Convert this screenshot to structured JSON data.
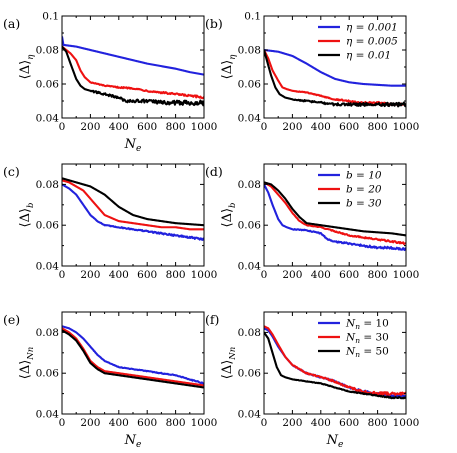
{
  "colors": {
    "blue": "#2222dd",
    "red": "#ee1111",
    "black": "#000000"
  },
  "chart_data": [
    {
      "type": "line",
      "panel": "(a)",
      "xlabel": "N",
      "xlabel_sub": "e",
      "ylabel": "⟨Δ⟩",
      "ylabel_sub": "η",
      "xlim": [
        0,
        1000
      ],
      "ylim": [
        0.04,
        0.1
      ],
      "xticks": [
        "0",
        "200",
        "400",
        "600",
        "800",
        "1000"
      ],
      "yticks": [
        "0.04",
        "0.06",
        "0.08",
        "0.1"
      ],
      "legend": null,
      "series": [
        {
          "color": "blue",
          "noise": 0,
          "x": [
            0,
            10,
            100,
            200,
            300,
            400,
            500,
            600,
            700,
            800,
            900,
            1000
          ],
          "y": [
            0.088,
            0.083,
            0.082,
            0.08,
            0.078,
            0.076,
            0.074,
            0.072,
            0.0705,
            0.069,
            0.067,
            0.0655
          ]
        },
        {
          "color": "red",
          "noise": 0.0007,
          "x": [
            0,
            30,
            60,
            100,
            130,
            160,
            200,
            300,
            400,
            500,
            600,
            700,
            800,
            900,
            1000
          ],
          "y": [
            0.082,
            0.08,
            0.078,
            0.074,
            0.068,
            0.064,
            0.061,
            0.059,
            0.058,
            0.0575,
            0.056,
            0.055,
            0.054,
            0.053,
            0.052
          ]
        },
        {
          "color": "black",
          "noise": 0.0015,
          "x": [
            0,
            30,
            60,
            100,
            130,
            160,
            200,
            300,
            400,
            450,
            500,
            600,
            700,
            800,
            900,
            1000
          ],
          "y": [
            0.082,
            0.079,
            0.072,
            0.063,
            0.059,
            0.057,
            0.056,
            0.054,
            0.052,
            0.05,
            0.05,
            0.05,
            0.049,
            0.049,
            0.049,
            0.049
          ]
        }
      ]
    },
    {
      "type": "line",
      "panel": "(b)",
      "xlabel": "",
      "xlabel_sub": "",
      "ylabel": "⟨Δ⟩",
      "ylabel_sub": "η",
      "xlim": [
        0,
        1000
      ],
      "ylim": [
        0.04,
        0.1
      ],
      "xticks": [
        "0",
        "200",
        "400",
        "600",
        "800",
        "1000"
      ],
      "yticks": [
        "0.04",
        "0.06",
        "0.08",
        "0.1"
      ],
      "legend": {
        "position": "top-right",
        "entries": [
          {
            "color": "blue",
            "label": "η = 0.001"
          },
          {
            "color": "red",
            "label": "η = 0.005"
          },
          {
            "color": "black",
            "label": "η = 0.01"
          }
        ]
      },
      "series": [
        {
          "color": "blue",
          "noise": 0,
          "x": [
            0,
            100,
            200,
            300,
            400,
            500,
            600,
            700,
            800,
            900,
            1000
          ],
          "y": [
            0.08,
            0.079,
            0.0765,
            0.072,
            0.067,
            0.063,
            0.061,
            0.06,
            0.0595,
            0.059,
            0.059
          ]
        },
        {
          "color": "red",
          "noise": 0.0006,
          "x": [
            0,
            30,
            60,
            100,
            130,
            160,
            200,
            300,
            400,
            500,
            600,
            700,
            800,
            900,
            1000
          ],
          "y": [
            0.08,
            0.075,
            0.068,
            0.062,
            0.058,
            0.057,
            0.056,
            0.055,
            0.053,
            0.051,
            0.05,
            0.049,
            0.049,
            0.048,
            0.048
          ]
        },
        {
          "color": "black",
          "noise": 0.0012,
          "x": [
            0,
            20,
            50,
            80,
            110,
            150,
            200,
            300,
            400,
            500,
            600,
            700,
            800,
            900,
            1000
          ],
          "y": [
            0.08,
            0.074,
            0.065,
            0.058,
            0.054,
            0.052,
            0.051,
            0.05,
            0.049,
            0.048,
            0.048,
            0.048,
            0.048,
            0.048,
            0.048
          ]
        }
      ]
    },
    {
      "type": "line",
      "panel": "(c)",
      "xlabel": "",
      "xlabel_sub": "",
      "ylabel": "⟨Δ⟩",
      "ylabel_sub": "b",
      "xlim": [
        0,
        1000
      ],
      "ylim": [
        0.04,
        0.09
      ],
      "xticks": [
        "0",
        "200",
        "400",
        "600",
        "800",
        "1000"
      ],
      "yticks": [
        "0.04",
        "0.06",
        "0.08"
      ],
      "legend": null,
      "series": [
        {
          "color": "blue",
          "noise": 0.0005,
          "x": [
            0,
            50,
            100,
            150,
            200,
            250,
            300,
            400,
            500,
            600,
            700,
            800,
            900,
            1000
          ],
          "y": [
            0.08,
            0.078,
            0.075,
            0.07,
            0.065,
            0.062,
            0.06,
            0.059,
            0.058,
            0.057,
            0.056,
            0.055,
            0.054,
            0.053
          ]
        },
        {
          "color": "red",
          "noise": 0,
          "x": [
            0,
            50,
            100,
            150,
            200,
            250,
            300,
            400,
            500,
            600,
            700,
            800,
            900,
            1000
          ],
          "y": [
            0.082,
            0.081,
            0.079,
            0.077,
            0.073,
            0.069,
            0.065,
            0.062,
            0.061,
            0.06,
            0.059,
            0.059,
            0.058,
            0.058
          ]
        },
        {
          "color": "black",
          "noise": 0,
          "x": [
            0,
            100,
            200,
            250,
            300,
            350,
            400,
            500,
            600,
            700,
            800,
            900,
            1000
          ],
          "y": [
            0.083,
            0.081,
            0.079,
            0.077,
            0.075,
            0.072,
            0.069,
            0.065,
            0.063,
            0.062,
            0.061,
            0.0605,
            0.06
          ]
        }
      ]
    },
    {
      "type": "line",
      "panel": "(d)",
      "xlabel": "",
      "xlabel_sub": "",
      "ylabel": "⟨Δ⟩",
      "ylabel_sub": "b",
      "xlim": [
        0,
        1000
      ],
      "ylim": [
        0.04,
        0.09
      ],
      "xticks": [
        "0",
        "200",
        "400",
        "600",
        "800",
        "1000"
      ],
      "yticks": [
        "0.04",
        "0.06",
        "0.08"
      ],
      "legend": {
        "position": "top-right",
        "entries": [
          {
            "color": "blue",
            "label": "b = 10"
          },
          {
            "color": "red",
            "label": "b = 20"
          },
          {
            "color": "black",
            "label": "b = 30"
          }
        ]
      },
      "series": [
        {
          "color": "blue",
          "noise": 0.0006,
          "x": [
            0,
            30,
            60,
            100,
            130,
            160,
            200,
            300,
            400,
            450,
            500,
            600,
            700,
            800,
            900,
            1000
          ],
          "y": [
            0.08,
            0.076,
            0.07,
            0.063,
            0.06,
            0.059,
            0.058,
            0.0575,
            0.056,
            0.053,
            0.052,
            0.051,
            0.05,
            0.049,
            0.049,
            0.048
          ]
        },
        {
          "color": "red",
          "noise": 0.0004,
          "x": [
            0,
            50,
            100,
            150,
            200,
            250,
            300,
            400,
            500,
            600,
            700,
            800,
            900,
            1000
          ],
          "y": [
            0.081,
            0.079,
            0.075,
            0.071,
            0.066,
            0.062,
            0.06,
            0.059,
            0.057,
            0.055,
            0.054,
            0.053,
            0.052,
            0.051
          ]
        },
        {
          "color": "black",
          "noise": 0,
          "x": [
            0,
            50,
            100,
            150,
            200,
            250,
            300,
            400,
            500,
            600,
            700,
            800,
            900,
            1000
          ],
          "y": [
            0.081,
            0.08,
            0.077,
            0.073,
            0.068,
            0.064,
            0.061,
            0.06,
            0.059,
            0.058,
            0.057,
            0.0565,
            0.056,
            0.055
          ]
        }
      ]
    },
    {
      "type": "line",
      "panel": "(e)",
      "xlabel": "N",
      "xlabel_sub": "e",
      "ylabel": "⟨Δ⟩",
      "ylabel_sub": "Nn",
      "xlim": [
        0,
        1000
      ],
      "ylim": [
        0.04,
        0.09
      ],
      "xticks": [
        "0",
        "200",
        "400",
        "600",
        "800",
        "1000"
      ],
      "yticks": [
        "0.04",
        "0.06",
        "0.08"
      ],
      "legend": null,
      "series": [
        {
          "color": "blue",
          "noise": 0.0003,
          "x": [
            0,
            50,
            100,
            150,
            200,
            250,
            300,
            400,
            500,
            600,
            700,
            800,
            900,
            1000
          ],
          "y": [
            0.083,
            0.082,
            0.08,
            0.077,
            0.073,
            0.069,
            0.066,
            0.063,
            0.062,
            0.061,
            0.06,
            0.059,
            0.057,
            0.055
          ]
        },
        {
          "color": "red",
          "noise": 0,
          "x": [
            0,
            50,
            100,
            150,
            200,
            250,
            300,
            400,
            500,
            600,
            700,
            800,
            900,
            1000
          ],
          "y": [
            0.082,
            0.08,
            0.077,
            0.072,
            0.066,
            0.063,
            0.061,
            0.06,
            0.059,
            0.058,
            0.057,
            0.056,
            0.055,
            0.054
          ]
        },
        {
          "color": "black",
          "noise": 0,
          "x": [
            0,
            50,
            100,
            150,
            200,
            250,
            300,
            400,
            500,
            600,
            700,
            800,
            900,
            1000
          ],
          "y": [
            0.081,
            0.079,
            0.076,
            0.071,
            0.065,
            0.062,
            0.06,
            0.059,
            0.058,
            0.057,
            0.056,
            0.055,
            0.054,
            0.053
          ]
        }
      ]
    },
    {
      "type": "line",
      "panel": "(f)",
      "xlabel": "N",
      "xlabel_sub": "e",
      "ylabel": "⟨Δ⟩",
      "ylabel_sub": "Nn",
      "xlim": [
        0,
        1000
      ],
      "ylim": [
        0.04,
        0.09
      ],
      "xticks": [
        "0",
        "200",
        "400",
        "600",
        "800",
        "1000"
      ],
      "yticks": [
        "0.04",
        "0.06",
        "0.08"
      ],
      "legend": {
        "position": "top-right",
        "entries": [
          {
            "color": "blue",
            "label": "N",
            "sub": "n",
            "value": " = 10"
          },
          {
            "color": "red",
            "label": "N",
            "sub": "n",
            "value": " = 30"
          },
          {
            "color": "black",
            "label": "N",
            "sub": "n",
            "value": " = 50"
          }
        ]
      },
      "series": [
        {
          "color": "blue",
          "noise": 0.0007,
          "x": [
            0,
            30,
            60,
            100,
            150,
            200,
            250,
            300,
            400,
            500,
            600,
            700,
            800,
            900,
            1000
          ],
          "y": [
            0.082,
            0.081,
            0.078,
            0.073,
            0.068,
            0.064,
            0.062,
            0.06,
            0.058,
            0.056,
            0.053,
            0.051,
            0.05,
            0.049,
            0.049
          ]
        },
        {
          "color": "red",
          "noise": 0.0008,
          "x": [
            0,
            30,
            60,
            100,
            150,
            200,
            250,
            300,
            400,
            500,
            600,
            700,
            800,
            900,
            1000
          ],
          "y": [
            0.083,
            0.082,
            0.079,
            0.074,
            0.068,
            0.064,
            0.062,
            0.06,
            0.058,
            0.056,
            0.053,
            0.051,
            0.05,
            0.05,
            0.05
          ]
        },
        {
          "color": "black",
          "noise": 0.0003,
          "x": [
            0,
            30,
            60,
            90,
            120,
            150,
            200,
            300,
            400,
            500,
            600,
            700,
            800,
            900,
            1000
          ],
          "y": [
            0.08,
            0.077,
            0.07,
            0.063,
            0.059,
            0.058,
            0.057,
            0.056,
            0.055,
            0.053,
            0.051,
            0.05,
            0.049,
            0.048,
            0.048
          ]
        }
      ]
    }
  ]
}
